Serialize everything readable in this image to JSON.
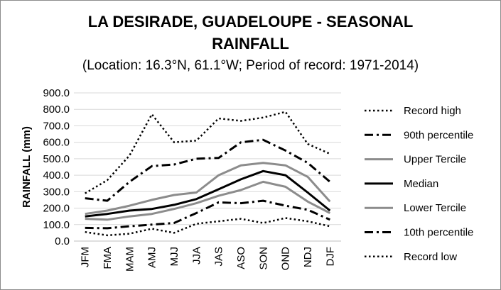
{
  "chart_data": {
    "type": "line",
    "title_line1": "LA DESIRADE, GUADELOUPE - SEASONAL",
    "title_line2": "RAINFALL",
    "subtitle": "(Location: 16.3°N, 61.1°W; Period of record: 1971-2014)",
    "ylabel": "RAINFALL (mm)",
    "xlabel": "",
    "ylim": [
      0,
      900
    ],
    "yticks": [
      "0.0",
      "100.0",
      "200.0",
      "300.0",
      "400.0",
      "500.0",
      "600.0",
      "700.0",
      "800.0",
      "900.0"
    ],
    "grid": true,
    "legend_position": "right",
    "categories": [
      "JFM",
      "FMA",
      "MAM",
      "AMJ",
      "MJJ",
      "JJA",
      "JAS",
      "ASO",
      "SON",
      "OND",
      "NDJ",
      "DJF"
    ],
    "series": [
      {
        "name": "Record high",
        "style": "dotted",
        "color": "#000000",
        "values": [
          290,
          370,
          520,
          770,
          600,
          610,
          745,
          730,
          750,
          785,
          590,
          530
        ]
      },
      {
        "name": "90th percentile",
        "style": "dashdot",
        "color": "#000000",
        "values": [
          260,
          245,
          360,
          455,
          465,
          500,
          505,
          600,
          615,
          550,
          475,
          360
        ]
      },
      {
        "name": "Upper Tercile",
        "style": "solid",
        "color": "#8c8c8c",
        "values": [
          165,
          185,
          215,
          250,
          280,
          295,
          400,
          460,
          475,
          460,
          390,
          240
        ]
      },
      {
        "name": "Median",
        "style": "solid",
        "color": "#000000",
        "values": [
          150,
          165,
          185,
          195,
          220,
          255,
          315,
          375,
          425,
          400,
          295,
          185
        ]
      },
      {
        "name": "Lower Tercile",
        "style": "solid",
        "color": "#8c8c8c",
        "values": [
          135,
          130,
          150,
          165,
          195,
          230,
          275,
          310,
          360,
          330,
          240,
          170
        ]
      },
      {
        "name": "10th percentile",
        "style": "dashdot",
        "color": "#000000",
        "values": [
          80,
          78,
          90,
          100,
          110,
          170,
          235,
          230,
          245,
          215,
          190,
          130
        ]
      },
      {
        "name": "Record low",
        "style": "dotted",
        "color": "#000000",
        "values": [
          55,
          35,
          45,
          75,
          50,
          105,
          120,
          135,
          110,
          140,
          120,
          90
        ]
      }
    ]
  }
}
